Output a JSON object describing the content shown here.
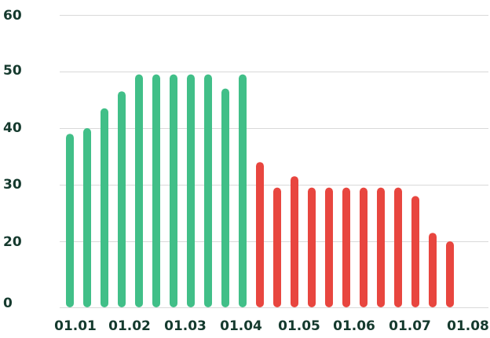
{
  "chart_data": {
    "type": "bar",
    "title": "",
    "xlabel": "",
    "ylabel": "",
    "ylim": [
      0,
      60
    ],
    "y_ticks": [
      {
        "value": 0,
        "label": "0"
      },
      {
        "value": 20,
        "label": "20"
      },
      {
        "value": 30,
        "label": "30"
      },
      {
        "value": 40,
        "label": "40"
      },
      {
        "value": 50,
        "label": "50"
      },
      {
        "value": 60,
        "label": "60"
      }
    ],
    "x_tick_labels": [
      "01.01",
      "01.02",
      "01.03",
      "01.04",
      "01.05",
      "01.06",
      "01.07",
      "01.08"
    ],
    "grid": true,
    "legend": false,
    "colors": {
      "up": "#41bf88",
      "down": "#e8463f",
      "grid": "#d9d9d9",
      "axis_text": "#153a2e"
    },
    "values": [
      39,
      40,
      43.5,
      46.5,
      49.5,
      49.5,
      49.5,
      49.5,
      49.5,
      47,
      49.5,
      34,
      29.5,
      31.5,
      29.5,
      29.5,
      29.5,
      29.5,
      29.5,
      29.5,
      28,
      21.5,
      20
    ],
    "bar_colors": [
      "up",
      "up",
      "up",
      "up",
      "up",
      "up",
      "up",
      "up",
      "up",
      "up",
      "up",
      "down",
      "down",
      "down",
      "down",
      "down",
      "down",
      "down",
      "down",
      "down",
      "down",
      "down",
      "down"
    ]
  }
}
